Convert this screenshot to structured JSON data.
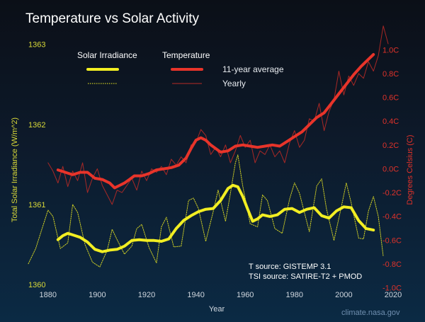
{
  "chart_data": {
    "type": "line",
    "title": "Temperature vs Solar Activity",
    "xlabel": "Year",
    "ylabel_left": "Total Solar Irradiance (W/m^2)",
    "ylabel_right": "Degrees Celsius (C)",
    "xlim": [
      1872,
      2020
    ],
    "ylim_left": [
      1359.93,
      1363.2
    ],
    "ylim_right": [
      -1.02,
      1.18
    ],
    "x_ticks": [
      "1880",
      "1900",
      "1920",
      "1940",
      "1960",
      "1980",
      "2000",
      "2020"
    ],
    "y_ticks_left": [
      "1360",
      "1361",
      "1362",
      "1363"
    ],
    "y_ticks_right": [
      "-1.0C",
      "-0.8C",
      "-0.6C",
      "-0.4C",
      "-0.2C",
      "0.0C",
      "0.2C",
      "0.4C",
      "0.6C",
      "0.8C",
      "1.0C"
    ],
    "legend": {
      "head_solar": "Solar Irradiance",
      "head_temp": "Temperature",
      "row_avg": "11-year average",
      "row_yearly": "Yearly",
      "placement": "top-center"
    },
    "annotations": {
      "t_source": "T source: GISTEMP 3.1",
      "tsi_source": "TSI source: SATIRE-T2 + PMOD",
      "credit": "climate.nasa.gov"
    },
    "colors": {
      "solar": "#f2ee22",
      "temperature": "#e8342a",
      "temperature_yearly": "#b82a26"
    },
    "series": [
      {
        "name": "Solar Irradiance 11-year average",
        "axis": "left",
        "style": "thick",
        "x": [
          1884,
          1886,
          1888,
          1890,
          1893,
          1896,
          1899,
          1902,
          1905,
          1908,
          1911,
          1914,
          1917,
          1920,
          1923,
          1926,
          1929,
          1932,
          1935,
          1938,
          1941,
          1944,
          1947,
          1950,
          1953,
          1955,
          1957,
          1959,
          1961,
          1963,
          1965,
          1967,
          1970,
          1973,
          1976,
          1979,
          1982,
          1985,
          1988,
          1991,
          1994,
          1997,
          2000,
          2003,
          2006,
          2009,
          2012
        ],
        "y": [
          1360.56,
          1360.61,
          1360.64,
          1360.62,
          1360.59,
          1360.53,
          1360.44,
          1360.41,
          1360.43,
          1360.44,
          1360.48,
          1360.55,
          1360.56,
          1360.55,
          1360.55,
          1360.54,
          1360.57,
          1360.7,
          1360.8,
          1360.86,
          1360.91,
          1360.94,
          1360.95,
          1361.05,
          1361.2,
          1361.24,
          1361.22,
          1361.1,
          1360.94,
          1360.79,
          1360.82,
          1360.87,
          1360.85,
          1360.87,
          1360.94,
          1360.95,
          1360.9,
          1360.94,
          1360.96,
          1360.86,
          1360.83,
          1360.92,
          1360.97,
          1360.96,
          1360.8,
          1360.7,
          1360.68
        ]
      },
      {
        "name": "Solar Irradiance yearly",
        "axis": "left",
        "style": "dotted",
        "x": [
          1872,
          1875,
          1878,
          1880,
          1882,
          1885,
          1888,
          1890,
          1892,
          1895,
          1898,
          1901,
          1904,
          1906,
          1908,
          1911,
          1914,
          1916,
          1918,
          1921,
          1924,
          1926,
          1928,
          1931,
          1934,
          1937,
          1939,
          1941,
          1944,
          1947,
          1949,
          1952,
          1954,
          1956,
          1957,
          1959,
          1962,
          1965,
          1967,
          1969,
          1972,
          1975,
          1978,
          1980,
          1982,
          1986,
          1989,
          1991,
          1993,
          1996,
          1999,
          2001,
          2003,
          2006,
          2008,
          2010,
          2012,
          2014,
          2016
        ],
        "y": [
          1360.26,
          1360.45,
          1360.74,
          1360.93,
          1360.85,
          1360.45,
          1360.52,
          1361.0,
          1360.9,
          1360.5,
          1360.28,
          1360.22,
          1360.43,
          1360.69,
          1360.56,
          1360.38,
          1360.48,
          1360.7,
          1360.75,
          1360.46,
          1360.27,
          1360.72,
          1360.84,
          1360.47,
          1360.48,
          1361.05,
          1361.08,
          1360.95,
          1360.54,
          1360.91,
          1361.18,
          1360.79,
          1361.14,
          1361.52,
          1361.62,
          1361.23,
          1360.76,
          1360.72,
          1361.12,
          1361.05,
          1360.7,
          1360.64,
          1361.07,
          1361.27,
          1361.14,
          1360.66,
          1361.23,
          1361.32,
          1360.94,
          1360.55,
          1360.97,
          1361.27,
          1361.02,
          1360.58,
          1360.57,
          1360.92,
          1361.1,
          1360.85,
          1360.35
        ]
      },
      {
        "name": "Temperature 11-year average",
        "axis": "right",
        "style": "thick",
        "x": [
          1884,
          1887,
          1890,
          1893,
          1896,
          1899,
          1902,
          1905,
          1907,
          1909,
          1911,
          1913,
          1915,
          1918,
          1921,
          1924,
          1927,
          1930,
          1933,
          1936,
          1938,
          1940,
          1942,
          1944,
          1946,
          1948,
          1950,
          1953,
          1956,
          1959,
          1962,
          1965,
          1968,
          1971,
          1974,
          1977,
          1980,
          1983,
          1986,
          1989,
          1992,
          1995,
          1998,
          2001,
          2004,
          2007,
          2010,
          2012
        ],
        "y": [
          -0.01,
          -0.03,
          -0.05,
          -0.03,
          -0.03,
          -0.08,
          -0.09,
          -0.12,
          -0.16,
          -0.14,
          -0.12,
          -0.09,
          -0.06,
          -0.06,
          -0.04,
          -0.01,
          0.0,
          0.01,
          0.03,
          0.09,
          0.17,
          0.24,
          0.26,
          0.24,
          0.2,
          0.17,
          0.14,
          0.15,
          0.19,
          0.2,
          0.19,
          0.18,
          0.19,
          0.2,
          0.19,
          0.23,
          0.27,
          0.31,
          0.37,
          0.43,
          0.47,
          0.55,
          0.63,
          0.71,
          0.79,
          0.86,
          0.92,
          0.96
        ]
      },
      {
        "name": "Temperature yearly",
        "axis": "right",
        "style": "thin",
        "x": [
          1880,
          1882,
          1884,
          1886,
          1888,
          1890,
          1892,
          1894,
          1896,
          1898,
          1900,
          1902,
          1904,
          1906,
          1908,
          1910,
          1912,
          1914,
          1916,
          1918,
          1920,
          1922,
          1924,
          1926,
          1928,
          1930,
          1932,
          1934,
          1936,
          1938,
          1940,
          1942,
          1944,
          1946,
          1948,
          1950,
          1952,
          1954,
          1956,
          1958,
          1960,
          1962,
          1964,
          1966,
          1968,
          1970,
          1972,
          1974,
          1976,
          1978,
          1980,
          1982,
          1984,
          1986,
          1988,
          1990,
          1992,
          1994,
          1996,
          1998,
          2000,
          2002,
          2004,
          2006,
          2008,
          2010,
          2012,
          2014,
          2016,
          2018
        ],
        "y": [
          0.05,
          -0.02,
          -0.12,
          0.02,
          -0.15,
          -0.02,
          -0.1,
          0.05,
          -0.2,
          -0.08,
          0.0,
          -0.14,
          -0.22,
          -0.3,
          -0.18,
          -0.2,
          -0.14,
          -0.08,
          -0.18,
          -0.02,
          -0.1,
          0.0,
          -0.03,
          0.02,
          -0.05,
          0.08,
          0.03,
          0.1,
          0.05,
          0.2,
          0.22,
          0.33,
          0.28,
          0.12,
          0.18,
          0.1,
          0.2,
          0.05,
          0.15,
          0.28,
          0.18,
          0.24,
          0.05,
          0.15,
          0.12,
          0.2,
          0.1,
          0.15,
          0.05,
          0.22,
          0.32,
          0.18,
          0.24,
          0.42,
          0.4,
          0.55,
          0.32,
          0.48,
          0.58,
          0.82,
          0.62,
          0.78,
          0.7,
          0.8,
          0.76,
          0.9,
          0.82,
          0.95,
          1.2,
          1.05
        ]
      }
    ]
  }
}
